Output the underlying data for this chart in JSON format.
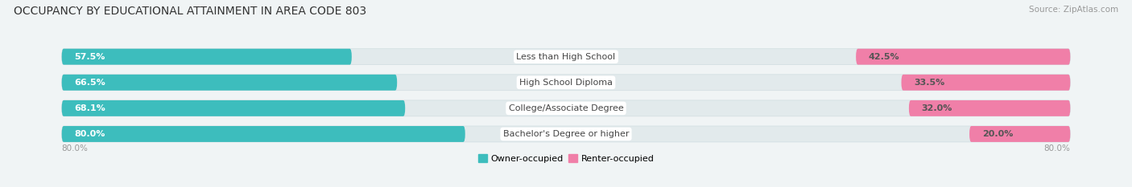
{
  "title": "OCCUPANCY BY EDUCATIONAL ATTAINMENT IN AREA CODE 803",
  "source": "Source: ZipAtlas.com",
  "categories": [
    "Less than High School",
    "High School Diploma",
    "College/Associate Degree",
    "Bachelor's Degree or higher"
  ],
  "owner_values": [
    57.5,
    66.5,
    68.1,
    80.0
  ],
  "renter_values": [
    42.5,
    33.5,
    32.0,
    20.0
  ],
  "owner_color": "#3DBDBD",
  "renter_color": "#F07FA8",
  "background_color": "#f0f4f5",
  "bar_background": "#e2eaec",
  "bar_background_outline": "#d0dde0",
  "title_fontsize": 10,
  "source_fontsize": 7.5,
  "label_fontsize": 8,
  "value_fontsize": 8
}
